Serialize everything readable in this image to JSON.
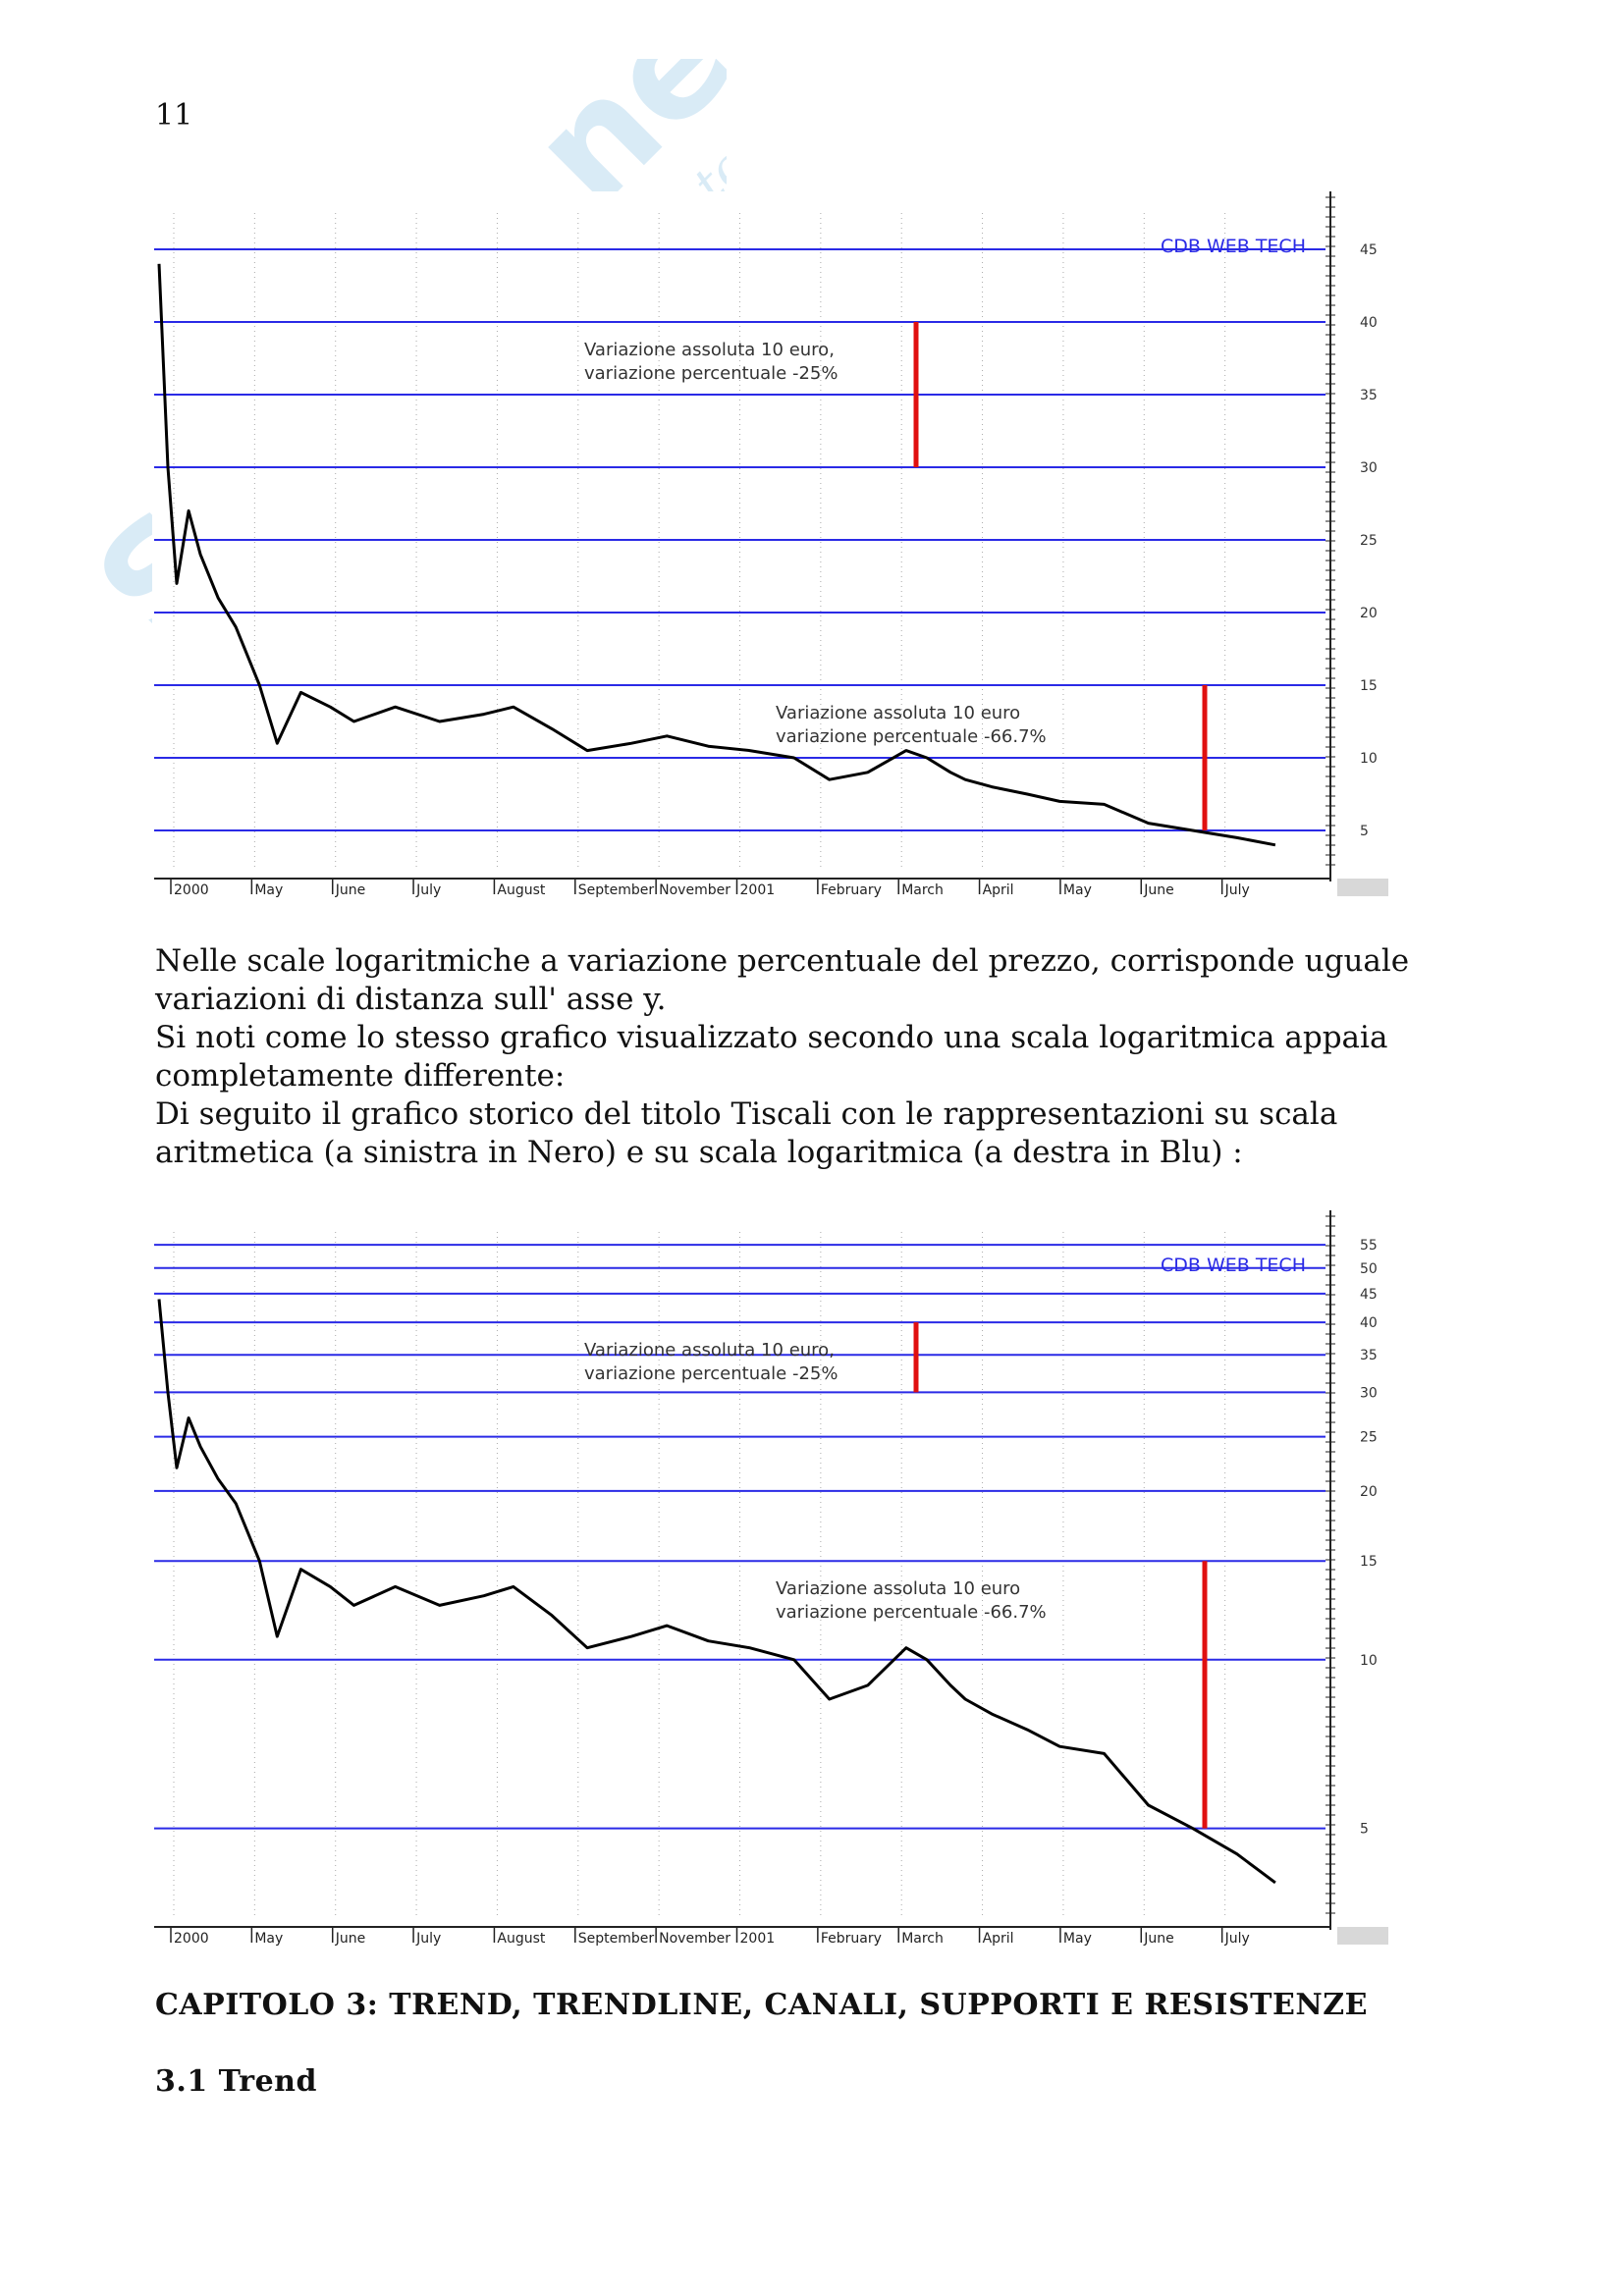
{
  "page": {
    "number": "11",
    "watermark": {
      "brand": "Skuola.net",
      "tagline": "il paradiso dello studente"
    },
    "paragraphs": [
      "Nelle scale logaritmiche a variazione percentuale del prezzo, corrisponde uguale variazioni di distanza sull' asse y.",
      "Si noti come lo stesso grafico visualizzato secondo una scala logaritmica appaia completamente differente:",
      "Di seguito il grafico storico del titolo Tiscali con le rappresentazioni su scala aritmetica (a sinistra in Nero) e su scala logaritmica (a destra in Blu) :"
    ],
    "chapter_heading": "CAPITOLO 3: TREND, TRENDLINE, CANALI, SUPPORTI E RESISTENZE",
    "section_heading": "3.1 Trend"
  },
  "colors": {
    "gridline": "#2a2ae6",
    "price": "#000000",
    "annotation_bar": "#e01010",
    "brand": "#2a2ae6"
  },
  "chart_data": [
    {
      "type": "line",
      "scale": "linear",
      "brand_label": "CDB WEB TECH",
      "x_tick_labels": [
        "2000",
        "May",
        "June",
        "July",
        "August",
        "September",
        "November",
        "2001",
        "February",
        "March",
        "April",
        "May",
        "June",
        "July"
      ],
      "y_tick_labels": [
        "5",
        "10",
        "15",
        "20",
        "25",
        "30",
        "35",
        "40",
        "45"
      ],
      "ylim": [
        2.5,
        47.5
      ],
      "series": [
        {
          "x": [
            0,
            3,
            6,
            10,
            14,
            20,
            26,
            34,
            40,
            48,
            58,
            66,
            80,
            95,
            110,
            120,
            133,
            145,
            160,
            172,
            186,
            200,
            215,
            227,
            240,
            253,
            260,
            268,
            273,
            282,
            294,
            305,
            320,
            335,
            350,
            365,
            378
          ],
          "y": [
            44,
            30,
            22,
            27,
            24,
            21,
            19,
            15,
            11,
            14.5,
            13.5,
            12.5,
            13.5,
            12.5,
            13.0,
            13.5,
            12.0,
            10.5,
            11.0,
            11.5,
            10.8,
            10.5,
            10.0,
            8.5,
            9.0,
            10.5,
            10.0,
            9.0,
            8.5,
            8.0,
            7.5,
            7.0,
            6.8,
            5.5,
            5.0,
            4.5,
            4.0
          ]
        }
      ],
      "annotations": [
        {
          "lines": [
            "Variazione assoluta 10 euro,",
            "variazione percentuale -25%"
          ],
          "bar_from": 30,
          "bar_to": 40
        },
        {
          "lines": [
            "Variazione assoluta 10 euro",
            "variazione percentuale -66.7%"
          ],
          "bar_from": 5,
          "bar_to": 15
        }
      ]
    },
    {
      "type": "line",
      "scale": "log",
      "brand_label": "CDB WEB TECH",
      "x_tick_labels": [
        "2000",
        "May",
        "June",
        "July",
        "August",
        "September",
        "November",
        "2001",
        "February",
        "March",
        "April",
        "May",
        "June",
        "July"
      ],
      "y_tick_labels": [
        "5",
        "10",
        "15",
        "20",
        "25",
        "30",
        "35",
        "40",
        "45",
        "50",
        "55"
      ],
      "ylim": [
        3.5,
        58
      ],
      "series": [
        {
          "x": [
            0,
            3,
            6,
            10,
            14,
            20,
            26,
            34,
            40,
            48,
            58,
            66,
            80,
            95,
            110,
            120,
            133,
            145,
            160,
            172,
            186,
            200,
            215,
            227,
            240,
            253,
            260,
            268,
            273,
            282,
            294,
            305,
            320,
            335,
            350,
            365,
            378
          ],
          "y": [
            44,
            30,
            22,
            27,
            24,
            21,
            19,
            15,
            11,
            14.5,
            13.5,
            12.5,
            13.5,
            12.5,
            13.0,
            13.5,
            12.0,
            10.5,
            11.0,
            11.5,
            10.8,
            10.5,
            10.0,
            8.5,
            9.0,
            10.5,
            10.0,
            9.0,
            8.5,
            8.0,
            7.5,
            7.0,
            6.8,
            5.5,
            5.0,
            4.5,
            4.0
          ]
        }
      ],
      "annotations": [
        {
          "lines": [
            "Variazione assoluta 10 euro,",
            "variazione percentuale -25%"
          ],
          "bar_from": 30,
          "bar_to": 40
        },
        {
          "lines": [
            "Variazione assoluta 10 euro",
            "variazione percentuale -66.7%"
          ],
          "bar_from": 5,
          "bar_to": 15
        }
      ]
    }
  ]
}
